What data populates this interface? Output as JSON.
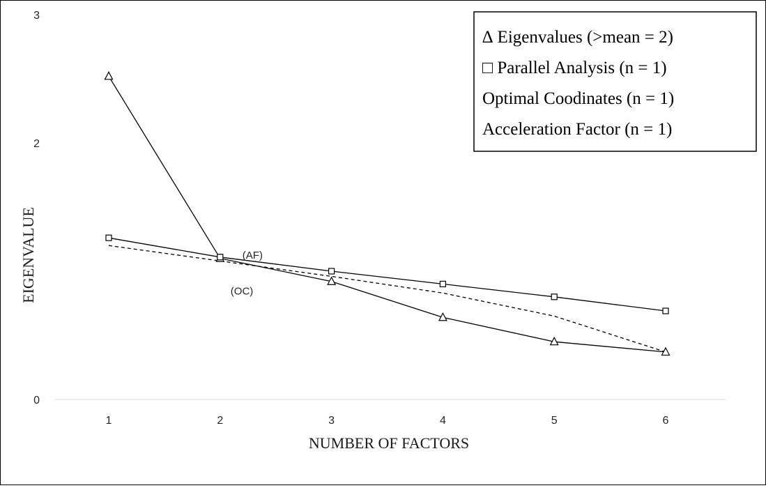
{
  "chart_data": {
    "type": "line",
    "title": "",
    "xlabel": "NUMBER OF FACTORS",
    "ylabel": "EIGENVALUE",
    "x": [
      1,
      2,
      3,
      4,
      5,
      6
    ],
    "x_tick_labels": [
      "1",
      "2",
      "3",
      "4",
      "5",
      "6"
    ],
    "ylim": [
      0,
      3
    ],
    "y_ticks": [
      0,
      2,
      3
    ],
    "y_tick_labels": [
      "0",
      "2",
      "3"
    ],
    "grid": false,
    "legend_position": "top-right",
    "series": [
      {
        "name": "Eigenvalues",
        "marker": "triangle",
        "line": "solid",
        "values": [
          2.52,
          1.1,
          0.92,
          0.64,
          0.45,
          0.37
        ]
      },
      {
        "name": "Parallel Analysis",
        "marker": "square",
        "line": "solid",
        "values": [
          1.26,
          1.11,
          1.0,
          0.9,
          0.8,
          0.69
        ]
      },
      {
        "name": "",
        "marker": "none",
        "line": "dashed",
        "values": [
          1.2,
          1.08,
          0.96,
          0.83,
          0.65,
          0.37
        ]
      }
    ],
    "legend": [
      "∆ Eigenvalues  (>mean = 2)",
      "□ Parallel  Analysis   (n = 1)",
      "Optimal Coodinates (n = 1)",
      "Acceleration Factor (n = 1)"
    ],
    "annotations": [
      {
        "text": "(AF)",
        "x": 2,
        "y": 1.11
      },
      {
        "text": "(OC)",
        "x": 2,
        "y": 1.1
      }
    ],
    "colors": {
      "line": "#000000",
      "text": "#262626",
      "axis": "#d9d9d9"
    }
  }
}
